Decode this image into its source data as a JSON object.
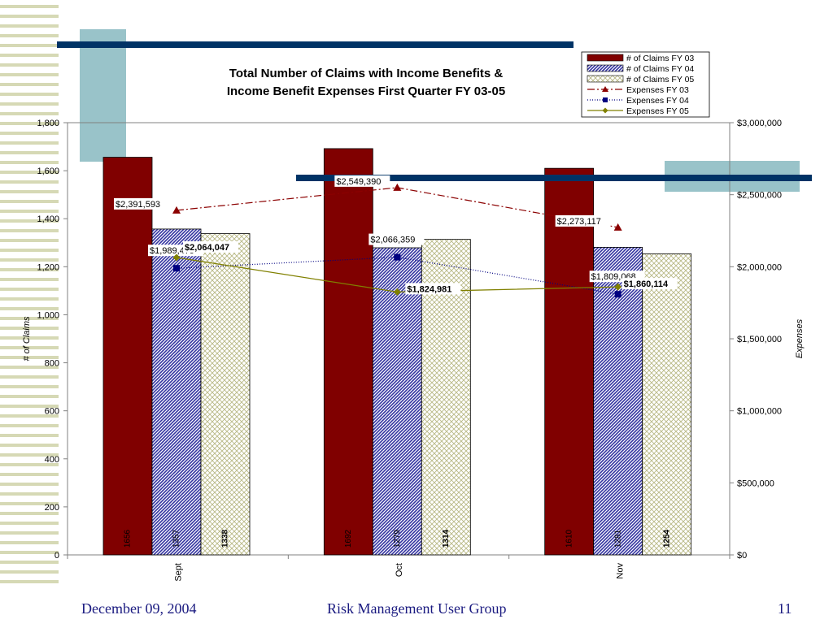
{
  "chart_data": {
    "type": "bar",
    "title_line1": "Total Number of Claims with Income Benefits &",
    "title_line2": "Income Benefit Expenses First Quarter FY 03-05",
    "categories": [
      "Sept",
      "Oct",
      "Nov"
    ],
    "ylabel": "# of Claims",
    "y2label": "Expenses",
    "ylim": [
      0,
      1800
    ],
    "y2lim": [
      0,
      3000000
    ],
    "yticks": [
      "0",
      "200",
      "400",
      "600",
      "800",
      "1,000",
      "1,200",
      "1,400",
      "1,600",
      "1,800"
    ],
    "y2ticks": [
      "$0",
      "$500,000",
      "$1,000,000",
      "$1,500,000",
      "$2,000,000",
      "$2,500,000",
      "$3,000,000"
    ],
    "bar_series": [
      {
        "name": "# of Claims FY 03",
        "values": [
          1656,
          1692,
          1610
        ],
        "labels": [
          "1656",
          "1692",
          "1610"
        ],
        "color": "#800000"
      },
      {
        "name": "# of Claims FY 04",
        "values": [
          1357,
          1279,
          1281
        ],
        "labels": [
          "1357",
          "1279",
          "1281"
        ],
        "color": "#3333a0"
      },
      {
        "name": "# of Claims FY 05",
        "values": [
          1338,
          1314,
          1254
        ],
        "labels": [
          "1338",
          "1314",
          "1254"
        ],
        "color": "#c8c89a"
      }
    ],
    "line_series": [
      {
        "name": "Expenses FY 03",
        "values": [
          2391593,
          2549390,
          2273117
        ],
        "labels": [
          "$2,391,593",
          "$2,549,390",
          "$2,273,117"
        ],
        "color": "#8b0000"
      },
      {
        "name": "Expenses FY 04",
        "values": [
          1989479,
          2066359,
          1809068
        ],
        "labels": [
          "$1,989,479",
          "$2,066,359",
          "$1,809,068"
        ],
        "color": "#000080"
      },
      {
        "name": "Expenses FY 05",
        "values": [
          2064047,
          1824981,
          1860114
        ],
        "labels": [
          "$2,064,047",
          "$1,824,981",
          "$1,860,114"
        ],
        "color": "#808000"
      }
    ],
    "legend_position": "top-right",
    "grid": false
  },
  "footer": {
    "date": "December 09, 2004",
    "center": "Risk Management User Group",
    "page": "11"
  },
  "colors": {
    "navy": "#003366",
    "teal": "#99c3c9",
    "stripe": "#d6d9b5"
  }
}
